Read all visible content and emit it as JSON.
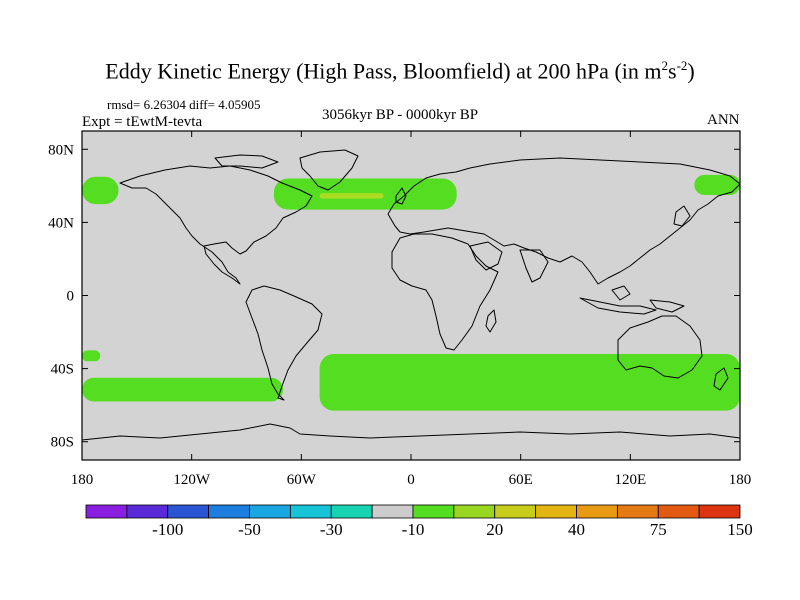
{
  "header": {
    "title": "Eddy Kinetic Energy (High Pass, Bloomfield) at 200 hPa (in m",
    "unit_base_1": "2",
    "unit_mid": "s",
    "unit_exp_2": "-2",
    "unit_close": ")",
    "stats": "rmsd= 6.26304  diff= 4.05905",
    "experiment": "Expt = tEwtM-tevta",
    "period": "3056kyr BP - 0000kyr BP",
    "season": "ANN"
  },
  "map": {
    "lat_ticks": [
      "80N",
      "40N",
      "0",
      "40S",
      "80S"
    ],
    "lon_ticks": [
      "180",
      "120W",
      "60W",
      "0",
      "60E",
      "120E",
      "180"
    ],
    "lat_values": [
      80,
      40,
      0,
      -40,
      -80
    ],
    "lon_values": [
      -180,
      -120,
      -60,
      0,
      60,
      120,
      180
    ],
    "lat_range": [
      -90,
      90
    ],
    "lon_range": [
      -180,
      180
    ],
    "background_color": "#d3d3d3",
    "positive_band_color": "#55dd22",
    "stronger_band_color": "#aadd22",
    "positive_regions": [
      {
        "name": "north-pacific-west",
        "lat": [
          50,
          65
        ],
        "lon": [
          -180,
          -160
        ]
      },
      {
        "name": "north-atlantic",
        "lat": [
          47,
          64
        ],
        "lon": [
          -75,
          25
        ]
      },
      {
        "name": "north-pacific-east",
        "lat": [
          55,
          66
        ],
        "lon": [
          155,
          180
        ]
      },
      {
        "name": "south-pacific",
        "lat": [
          -58,
          -45
        ],
        "lon": [
          -180,
          -70
        ]
      },
      {
        "name": "south-indian-atlantic",
        "lat": [
          -63,
          -32
        ],
        "lon": [
          -50,
          180
        ]
      },
      {
        "name": "south-pacific-west",
        "lat": [
          -36,
          -30
        ],
        "lon": [
          -180,
          -170
        ]
      }
    ],
    "stronger_regions": [
      {
        "name": "north-atlantic-core",
        "lat": [
          53,
          56
        ],
        "lon": [
          -50,
          -15
        ]
      }
    ]
  },
  "colorbar": {
    "labels": [
      "-100",
      "-50",
      "-30",
      "-10",
      "20",
      "40",
      "75",
      "150"
    ],
    "colors": [
      "#8a1ee0",
      "#5b2ad8",
      "#2a56d6",
      "#1c7fe0",
      "#1aa6e0",
      "#17c3d6",
      "#16d4b2",
      "#cccccc",
      "#55dd22",
      "#99d622",
      "#c8cc1a",
      "#e2b512",
      "#e89a12",
      "#e67a12",
      "#e25a12",
      "#dc3410"
    ]
  }
}
